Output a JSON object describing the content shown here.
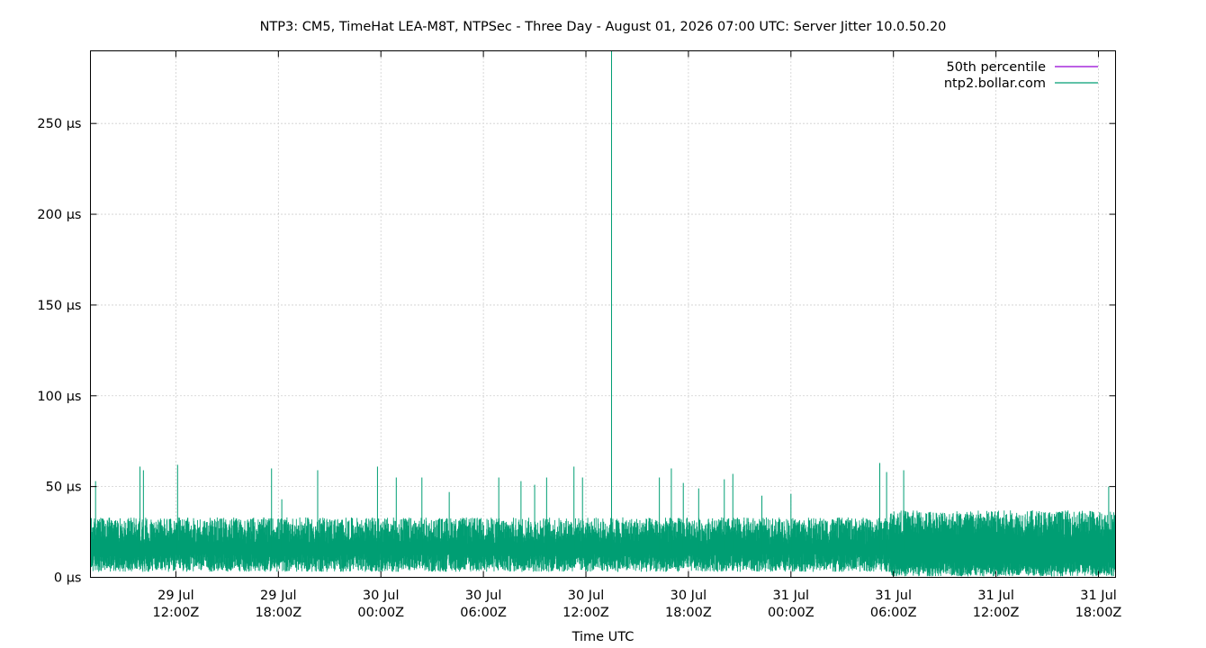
{
  "chart_data": {
    "type": "line",
    "title": "NTP3: CM5, TimeHat LEA-M8T, NTPSec - Three Day - August 01, 2026 07:00 UTC: Server Jitter 10.0.50.20",
    "xlabel": "Time UTC",
    "ylabel": "",
    "ylim": [
      0,
      290
    ],
    "y_ticks": [
      {
        "value": 0,
        "label": "0 µs"
      },
      {
        "value": 50,
        "label": "50 µs"
      },
      {
        "value": 100,
        "label": "100 µs"
      },
      {
        "value": 150,
        "label": "150 µs"
      },
      {
        "value": 200,
        "label": "200 µs"
      },
      {
        "value": 250,
        "label": "250 µs"
      }
    ],
    "x_unit": "hours since 29 Jul 00:00Z",
    "xlim": [
      7,
      67
    ],
    "x_ticks": [
      {
        "value": 12,
        "line1": "29 Jul",
        "line2": "12:00Z"
      },
      {
        "value": 18,
        "line1": "29 Jul",
        "line2": "18:00Z"
      },
      {
        "value": 24,
        "line1": "30 Jul",
        "line2": "00:00Z"
      },
      {
        "value": 30,
        "line1": "30 Jul",
        "line2": "06:00Z"
      },
      {
        "value": 36,
        "line1": "30 Jul",
        "line2": "12:00Z"
      },
      {
        "value": 42,
        "line1": "30 Jul",
        "line2": "18:00Z"
      },
      {
        "value": 48,
        "line1": "31 Jul",
        "line2": "00:00Z"
      },
      {
        "value": 54,
        "line1": "31 Jul",
        "line2": "06:00Z"
      },
      {
        "value": 60,
        "line1": "31 Jul",
        "line2": "12:00Z"
      },
      {
        "value": 66,
        "line1": "31 Jul",
        "line2": "18:00Z"
      }
    ],
    "grid": true,
    "legend_position": "top-right",
    "series": [
      {
        "name": "50th percentile",
        "color": "#9400d3",
        "values": []
      },
      {
        "name": "ntp2.bollar.com",
        "color": "#009e73",
        "typical_range": [
          2,
          35
        ],
        "spikes": [
          {
            "x": 7.3,
            "y": 53
          },
          {
            "x": 9.9,
            "y": 61
          },
          {
            "x": 10.1,
            "y": 59
          },
          {
            "x": 12.1,
            "y": 62
          },
          {
            "x": 17.6,
            "y": 60
          },
          {
            "x": 18.2,
            "y": 43
          },
          {
            "x": 20.3,
            "y": 59
          },
          {
            "x": 23.8,
            "y": 61
          },
          {
            "x": 24.9,
            "y": 55
          },
          {
            "x": 26.4,
            "y": 55
          },
          {
            "x": 28.0,
            "y": 47
          },
          {
            "x": 30.9,
            "y": 55
          },
          {
            "x": 32.2,
            "y": 53
          },
          {
            "x": 33.0,
            "y": 51
          },
          {
            "x": 33.7,
            "y": 55
          },
          {
            "x": 35.3,
            "y": 61
          },
          {
            "x": 35.8,
            "y": 55
          },
          {
            "x": 37.5,
            "y": 290
          },
          {
            "x": 40.3,
            "y": 55
          },
          {
            "x": 41.0,
            "y": 60
          },
          {
            "x": 41.7,
            "y": 52
          },
          {
            "x": 42.6,
            "y": 49
          },
          {
            "x": 44.1,
            "y": 54
          },
          {
            "x": 44.6,
            "y": 57
          },
          {
            "x": 46.3,
            "y": 45
          },
          {
            "x": 48.0,
            "y": 46
          },
          {
            "x": 53.2,
            "y": 63
          },
          {
            "x": 53.6,
            "y": 58
          },
          {
            "x": 54.6,
            "y": 59
          },
          {
            "x": 66.6,
            "y": 50
          }
        ]
      }
    ]
  }
}
